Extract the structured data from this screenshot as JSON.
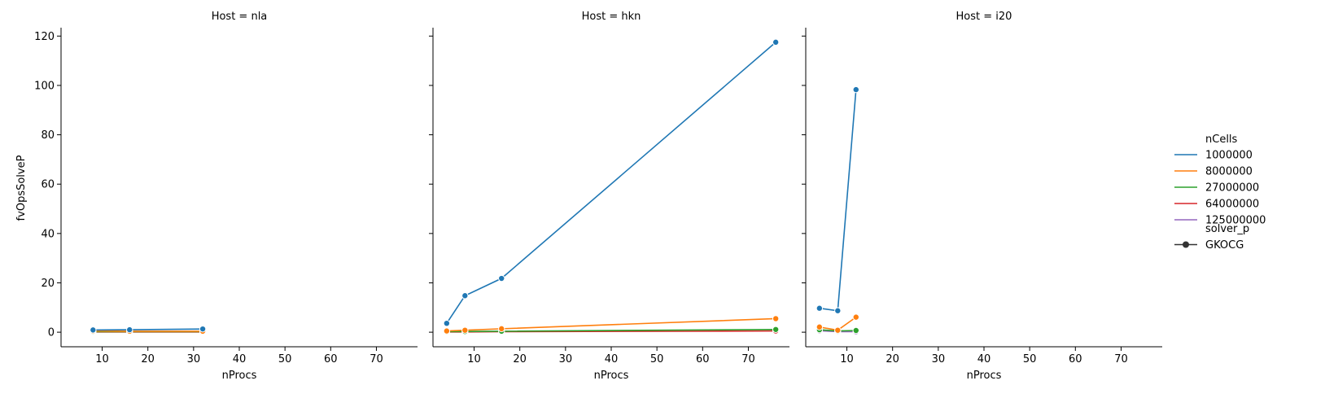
{
  "chart_data": {
    "type": "line",
    "ylabel": "fvOpsSolveP",
    "xlabel": "nProcs",
    "xlim": [
      1,
      79
    ],
    "ylim": [
      -5.9,
      123.4
    ],
    "xticks": [
      10,
      20,
      30,
      40,
      50,
      60,
      70
    ],
    "yticks": [
      0,
      20,
      40,
      60,
      80,
      100,
      120
    ],
    "grid": false,
    "legend": {
      "placement": "right",
      "hue_title": "nCells",
      "style_title": "solver_p",
      "style_entries": [
        {
          "label": "GKOCG",
          "color": "#333333"
        }
      ]
    },
    "panels": [
      {
        "title": "Host = nla",
        "series": [
          {
            "name": "1000000",
            "color": "#1f77b4",
            "x": [
              8,
              16,
              32
            ],
            "y": [
              0.9,
              1.0,
              1.3
            ]
          },
          {
            "name": "8000000",
            "color": "#ff7f0e",
            "x": [
              8,
              16,
              32
            ],
            "y": [
              0.5,
              0.4,
              0.4
            ]
          },
          {
            "name": "27000000",
            "color": "#2ca02c",
            "x": [
              8,
              16,
              32
            ],
            "y": [
              0.2,
              0.2,
              0.2
            ]
          },
          {
            "name": "64000000",
            "color": "#d62728",
            "x": [
              8,
              16,
              32
            ],
            "y": [
              0.1,
              0.1,
              0.1
            ]
          }
        ]
      },
      {
        "title": "Host = hkn",
        "series": [
          {
            "name": "1000000",
            "color": "#1f77b4",
            "x": [
              4,
              8,
              16,
              76
            ],
            "y": [
              3.6,
              14.8,
              21.8,
              117.5
            ]
          },
          {
            "name": "8000000",
            "color": "#ff7f0e",
            "x": [
              4,
              8,
              16,
              76
            ],
            "y": [
              0.5,
              0.8,
              1.4,
              5.5
            ]
          },
          {
            "name": "27000000",
            "color": "#2ca02c",
            "x": [
              4,
              8,
              16,
              76
            ],
            "y": [
              0.2,
              0.3,
              0.4,
              1.1
            ]
          },
          {
            "name": "64000000",
            "color": "#d62728",
            "x": [
              4,
              8,
              16,
              76
            ],
            "y": [
              0.1,
              0.1,
              0.2,
              0.5
            ]
          }
        ]
      },
      {
        "title": "Host = i20",
        "series": [
          {
            "name": "1000000",
            "color": "#1f77b4",
            "x": [
              4,
              8,
              12
            ],
            "y": [
              9.7,
              8.7,
              98.3
            ]
          },
          {
            "name": "8000000",
            "color": "#ff7f0e",
            "x": [
              4,
              8,
              12
            ],
            "y": [
              2.1,
              0.8,
              6.1
            ]
          },
          {
            "name": "27000000",
            "color": "#2ca02c",
            "x": [
              4,
              8,
              12
            ],
            "y": [
              1.0,
              0.5,
              0.7
            ]
          },
          {
            "name": "125000000",
            "color": "#9467bd",
            "x": [
              4,
              8,
              12
            ],
            "y": [
              0.6,
              0.2,
              0.2
            ]
          }
        ]
      }
    ]
  }
}
